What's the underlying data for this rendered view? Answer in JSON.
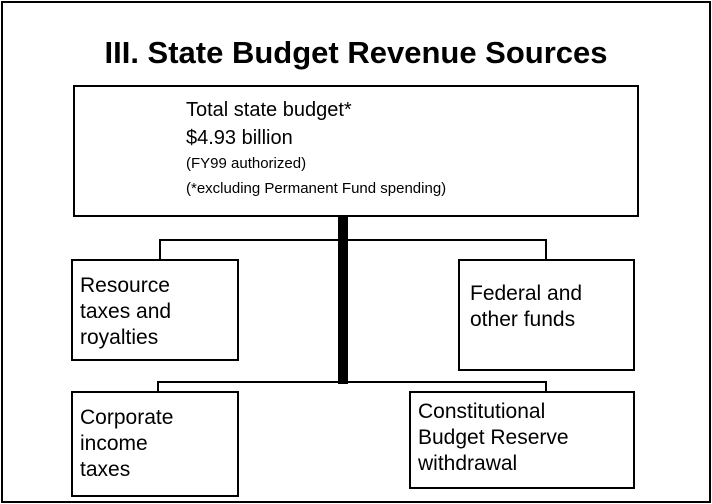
{
  "title": "III. State Budget Revenue Sources",
  "root": {
    "lines": [
      "Total state budget*",
      "$4.93 billion",
      "(FY99 authorized)",
      "(*excluding Permanent Fund spending)"
    ]
  },
  "nodes": [
    {
      "lines": [
        "Resource",
        "taxes and",
        "royalties"
      ]
    },
    {
      "lines": [
        "Federal and",
        "other funds"
      ]
    },
    {
      "lines": [
        "Corporate",
        "income",
        "taxes"
      ]
    },
    {
      "lines": [
        "Constitutional",
        "Budget Reserve",
        "withdrawal"
      ]
    }
  ]
}
